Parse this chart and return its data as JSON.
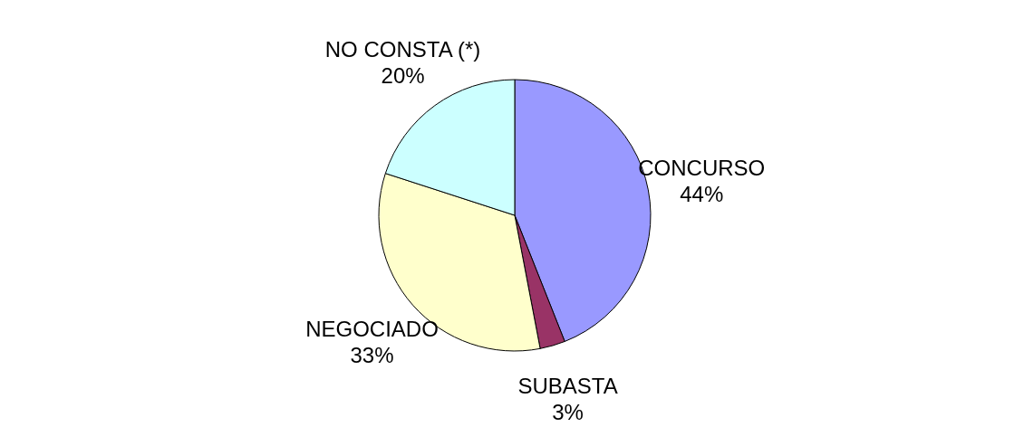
{
  "chart_data": {
    "type": "pie",
    "categories": [
      "CONCURSO",
      "SUBASTA",
      "NEGOCIADO",
      "NO CONSTA (*)"
    ],
    "values": [
      44,
      3,
      33,
      20
    ],
    "value_labels": [
      "44%",
      "3%",
      "33%",
      "20%"
    ],
    "colors": [
      "#9999ff",
      "#993366",
      "#ffffcc",
      "#ccffff"
    ]
  }
}
